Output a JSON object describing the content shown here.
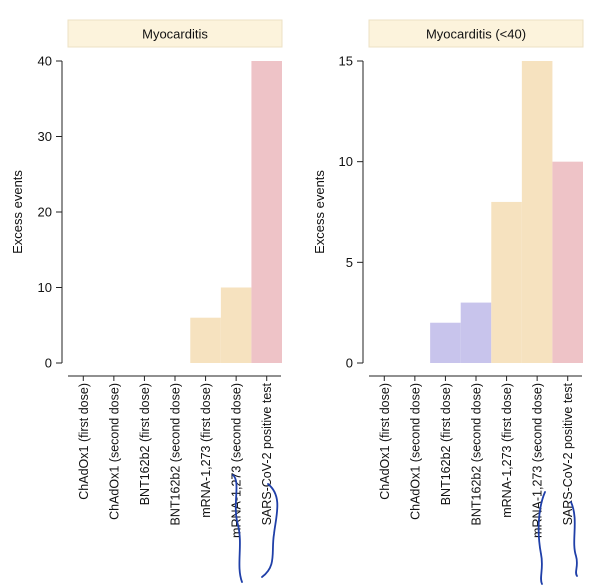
{
  "chart_data": [
    {
      "type": "bar",
      "title": "Myocarditis",
      "ylabel": "Excess events",
      "xlabel": "",
      "ylim": [
        0,
        40
      ],
      "yticks": [
        0,
        10,
        20,
        30,
        40
      ],
      "categories": [
        "ChAdOx1 (first dose)",
        "ChAdOx1 (second dose)",
        "BNT162b2 (first dose)",
        "BNT162b2 (second dose)",
        "mRNA-1,273 (first dose)",
        "mRNA-1,273 (second dose)",
        "SARS-CoV-2 positive test"
      ],
      "values": [
        0,
        0,
        0,
        0,
        6,
        10,
        40
      ],
      "bar_colors": [
        "#c8c4ec",
        "#c8c4ec",
        "#c8c4ec",
        "#c8c4ec",
        "#f6e2bf",
        "#f6e2bf",
        "#eec3c7"
      ]
    },
    {
      "type": "bar",
      "title": "Myocarditis (<40)",
      "ylabel": "Excess events",
      "xlabel": "",
      "ylim": [
        0,
        15
      ],
      "yticks": [
        0,
        5,
        10,
        15
      ],
      "categories": [
        "ChAdOx1 (first dose)",
        "ChAdOx1 (second dose)",
        "BNT162b2 (first dose)",
        "BNT162b2 (second dose)",
        "mRNA-1,273 (first dose)",
        "mRNA-1,273 (second dose)",
        "SARS-CoV-2 positive test"
      ],
      "values": [
        0,
        0,
        2,
        3,
        8,
        15,
        10
      ],
      "bar_colors": [
        "#c8c4ec",
        "#c8c4ec",
        "#c8c4ec",
        "#c8c4ec",
        "#f6e2bf",
        "#f6e2bf",
        "#eec3c7"
      ]
    }
  ],
  "colors": {
    "chadox1": "#c8c4ec",
    "bnt162b2": "#c8c4ec",
    "mrna1273": "#f6e2bf",
    "sars_cov_2": "#eec3c7",
    "strip_background": "#fcf3dc",
    "pen_annotation": "#1f3fa8"
  }
}
